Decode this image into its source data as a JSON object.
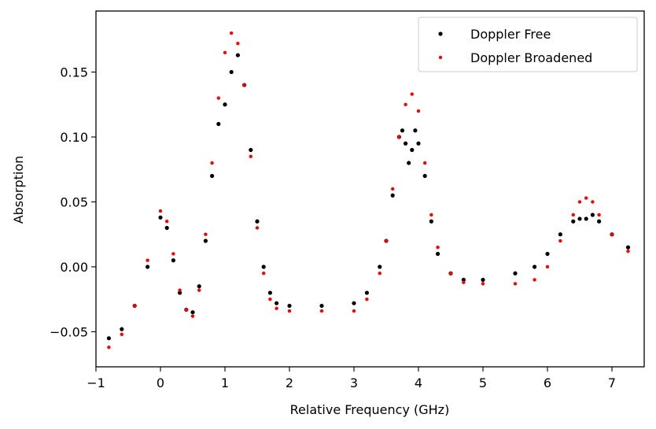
{
  "chart_data": {
    "type": "scatter",
    "title": "",
    "xlabel": "Relative Frequency (GHz)",
    "ylabel": "Absorption",
    "xlim": [
      -1.0,
      7.5
    ],
    "ylim": [
      -0.077,
      0.197
    ],
    "xticks": [
      -1,
      0,
      1,
      2,
      3,
      4,
      5,
      6,
      7
    ],
    "xtick_labels": [
      "−1",
      "0",
      "1",
      "2",
      "3",
      "4",
      "5",
      "6",
      "7"
    ],
    "yticks": [
      -0.05,
      0.0,
      0.05,
      0.1,
      0.15
    ],
    "ytick_labels": [
      "−0.05",
      "0.00",
      "0.05",
      "0.10",
      "0.15"
    ],
    "legend_position": "top-right",
    "series": [
      {
        "name": "Doppler Free",
        "color": "#000000",
        "x": [
          -0.8,
          -0.6,
          -0.4,
          -0.2,
          0.0,
          0.1,
          0.2,
          0.3,
          0.4,
          0.5,
          0.6,
          0.7,
          0.8,
          0.9,
          1.0,
          1.1,
          1.2,
          1.3,
          1.4,
          1.5,
          1.6,
          1.7,
          1.8,
          2.0,
          2.5,
          3.0,
          3.2,
          3.4,
          3.5,
          3.6,
          3.7,
          3.75,
          3.8,
          3.85,
          3.9,
          3.95,
          4.0,
          4.1,
          4.2,
          4.3,
          4.5,
          4.7,
          5.0,
          5.5,
          5.8,
          6.0,
          6.2,
          6.4,
          6.5,
          6.6,
          6.7,
          6.8,
          7.0,
          7.25
        ],
        "y": [
          -0.055,
          -0.048,
          -0.03,
          0.0,
          0.038,
          0.03,
          0.005,
          -0.02,
          -0.033,
          -0.035,
          -0.015,
          0.02,
          0.07,
          0.11,
          0.125,
          0.15,
          0.163,
          0.14,
          0.09,
          0.035,
          0.0,
          -0.02,
          -0.028,
          -0.03,
          -0.03,
          -0.028,
          -0.02,
          0.0,
          0.02,
          0.055,
          0.1,
          0.105,
          0.095,
          0.08,
          0.09,
          0.105,
          0.095,
          0.07,
          0.035,
          0.01,
          -0.005,
          -0.01,
          -0.01,
          -0.005,
          0.0,
          0.01,
          0.025,
          0.035,
          0.037,
          0.037,
          0.04,
          0.035,
          0.025,
          0.015
        ]
      },
      {
        "name": "Doppler Broadened",
        "color": "#ff0000",
        "x": [
          -0.8,
          -0.6,
          -0.4,
          -0.2,
          0.0,
          0.1,
          0.2,
          0.3,
          0.4,
          0.5,
          0.6,
          0.7,
          0.8,
          0.9,
          1.0,
          1.1,
          1.2,
          1.3,
          1.4,
          1.5,
          1.6,
          1.7,
          1.8,
          2.0,
          2.5,
          3.0,
          3.2,
          3.4,
          3.5,
          3.6,
          3.7,
          3.8,
          3.9,
          4.0,
          4.1,
          4.2,
          4.3,
          4.5,
          4.7,
          5.0,
          5.5,
          5.8,
          6.0,
          6.2,
          6.4,
          6.5,
          6.6,
          6.7,
          6.8,
          7.0,
          7.25
        ],
        "y": [
          -0.062,
          -0.052,
          -0.03,
          0.005,
          0.043,
          0.035,
          0.01,
          -0.018,
          -0.033,
          -0.038,
          -0.018,
          0.025,
          0.08,
          0.13,
          0.165,
          0.18,
          0.172,
          0.14,
          0.085,
          0.03,
          -0.005,
          -0.025,
          -0.032,
          -0.034,
          -0.034,
          -0.034,
          -0.025,
          -0.005,
          0.02,
          0.06,
          0.1,
          0.125,
          0.133,
          0.12,
          0.08,
          0.04,
          0.015,
          -0.005,
          -0.012,
          -0.013,
          -0.013,
          -0.01,
          0.0,
          0.02,
          0.04,
          0.05,
          0.053,
          0.05,
          0.04,
          0.025,
          0.012
        ]
      }
    ]
  }
}
